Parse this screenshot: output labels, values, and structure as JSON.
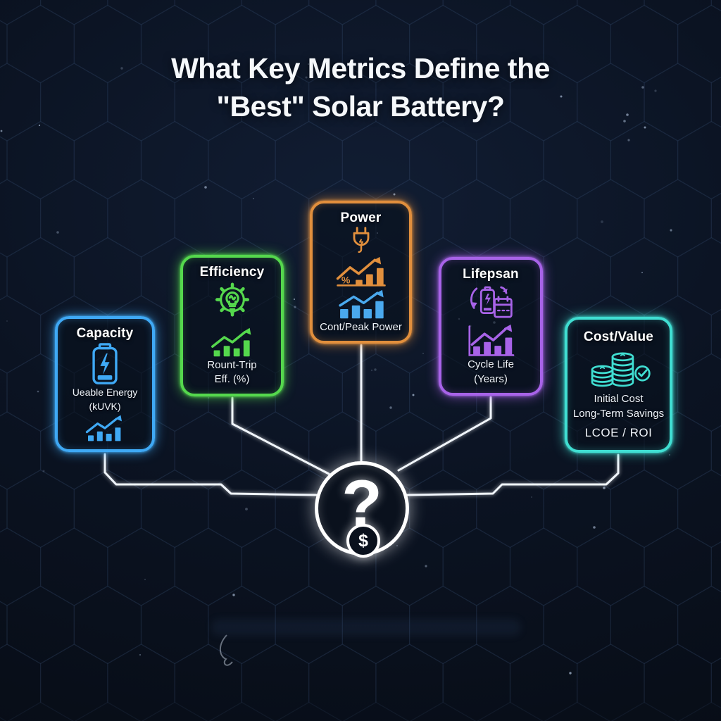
{
  "title": {
    "line1": "What Key Metrics Define the",
    "line2": "\"Best\" Solar Battery?"
  },
  "hub": {
    "question_mark": "?",
    "dollar_sign": "$"
  },
  "colors": {
    "capacity_accent": "#3fa9f5",
    "efficiency_accent": "#55d84d",
    "power_accent": "#e18f3d",
    "power_secondary_blue": "#4aa9ee",
    "lifespan_accent": "#a863e8",
    "cost_accent": "#40ded2",
    "connector": "#f0f5fb",
    "background": "#0b1322"
  },
  "cards": [
    {
      "label": "Capacity",
      "color": "#3fa9f5",
      "icon": "battery-icon",
      "lines": [
        "Ueable Energy",
        "(kUVK)"
      ]
    },
    {
      "label": "Efficiency",
      "color": "#55d84d",
      "icon": "gear-bulb-icon",
      "lines": [
        "Rount-Trip",
        "Eff. (%)"
      ]
    },
    {
      "label": "Power",
      "color": "#e18f3d",
      "icon": "plug-icon",
      "percent_label": "%",
      "lines": [
        "Cont/Peak Power"
      ]
    },
    {
      "label": "Lifepsan",
      "color": "#a863e8",
      "icon": "battery-cycle-calendar-icon",
      "lines": [
        "Cycle Life",
        "(Years)"
      ]
    },
    {
      "label": "Cost/Value",
      "color": "#40ded2",
      "icon": "coins-check-icon",
      "lines": [
        "Initial Cost",
        "Long-Term Savings",
        "LCOE / ROI"
      ]
    }
  ]
}
